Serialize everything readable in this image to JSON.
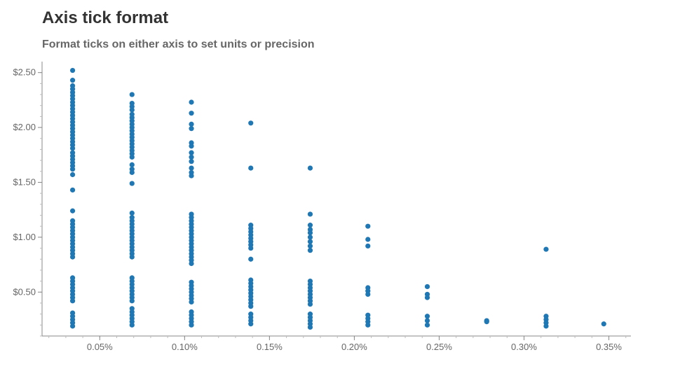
{
  "chart_data": {
    "type": "scatter",
    "title": "Axis tick format",
    "subtitle": "Format ticks on either axis to set units or precision",
    "xlabel": "",
    "ylabel": "",
    "xlim": [
      0.00016,
      0.00363
    ],
    "ylim": [
      0.1,
      2.6
    ],
    "grid": false,
    "x_ticks": [
      {
        "value": 0.0005,
        "label": "0.05%"
      },
      {
        "value": 0.001,
        "label": "0.10%"
      },
      {
        "value": 0.0015,
        "label": "0.15%"
      },
      {
        "value": 0.002,
        "label": "0.20%"
      },
      {
        "value": 0.0025,
        "label": "0.25%"
      },
      {
        "value": 0.003,
        "label": "0.30%"
      },
      {
        "value": 0.0035,
        "label": "0.35%"
      }
    ],
    "y_ticks": [
      {
        "value": 0.5,
        "label": "$0.50"
      },
      {
        "value": 1.0,
        "label": "$1.00"
      },
      {
        "value": 1.5,
        "label": "$1.50"
      },
      {
        "value": 2.0,
        "label": "$2.00"
      },
      {
        "value": 2.5,
        "label": "$2.50"
      }
    ],
    "colors": {
      "points": "#1f77b4",
      "axis": "#888888"
    },
    "series": [
      {
        "points": [
          [
            0.00034,
            2.52
          ],
          [
            0.00034,
            2.43
          ],
          [
            0.00034,
            2.38
          ],
          [
            0.00034,
            2.35
          ],
          [
            0.00034,
            2.32
          ],
          [
            0.00034,
            2.29
          ],
          [
            0.00034,
            2.26
          ],
          [
            0.00034,
            2.23
          ],
          [
            0.00034,
            2.2
          ],
          [
            0.00034,
            2.17
          ],
          [
            0.00034,
            2.14
          ],
          [
            0.00034,
            2.11
          ],
          [
            0.00034,
            2.08
          ],
          [
            0.00034,
            2.05
          ],
          [
            0.00034,
            2.02
          ],
          [
            0.00034,
            1.99
          ],
          [
            0.00034,
            1.96
          ],
          [
            0.00034,
            1.93
          ],
          [
            0.00034,
            1.9
          ],
          [
            0.00034,
            1.87
          ],
          [
            0.00034,
            1.84
          ],
          [
            0.00034,
            1.81
          ],
          [
            0.00034,
            1.77
          ],
          [
            0.00034,
            1.74
          ],
          [
            0.00034,
            1.71
          ],
          [
            0.00034,
            1.68
          ],
          [
            0.00034,
            1.65
          ],
          [
            0.00034,
            1.62
          ],
          [
            0.00034,
            1.57
          ],
          [
            0.00034,
            1.43
          ],
          [
            0.00034,
            1.24
          ],
          [
            0.00034,
            1.15
          ],
          [
            0.00034,
            1.12
          ],
          [
            0.00034,
            1.09
          ],
          [
            0.00034,
            1.06
          ],
          [
            0.00034,
            1.03
          ],
          [
            0.00034,
            1.0
          ],
          [
            0.00034,
            0.97
          ],
          [
            0.00034,
            0.94
          ],
          [
            0.00034,
            0.91
          ],
          [
            0.00034,
            0.88
          ],
          [
            0.00034,
            0.85
          ],
          [
            0.00034,
            0.82
          ],
          [
            0.00034,
            0.63
          ],
          [
            0.00034,
            0.6
          ],
          [
            0.00034,
            0.57
          ],
          [
            0.00034,
            0.54
          ],
          [
            0.00034,
            0.51
          ],
          [
            0.00034,
            0.48
          ],
          [
            0.00034,
            0.45
          ],
          [
            0.00034,
            0.42
          ],
          [
            0.00034,
            0.31
          ],
          [
            0.00034,
            0.28
          ],
          [
            0.00034,
            0.25
          ],
          [
            0.00034,
            0.22
          ],
          [
            0.00034,
            0.19
          ],
          [
            0.00069,
            2.3
          ],
          [
            0.00069,
            2.22
          ],
          [
            0.00069,
            2.19
          ],
          [
            0.00069,
            2.16
          ],
          [
            0.00069,
            2.12
          ],
          [
            0.00069,
            2.09
          ],
          [
            0.00069,
            2.06
          ],
          [
            0.00069,
            2.03
          ],
          [
            0.00069,
            2.0
          ],
          [
            0.00069,
            1.97
          ],
          [
            0.00069,
            1.94
          ],
          [
            0.00069,
            1.91
          ],
          [
            0.00069,
            1.88
          ],
          [
            0.00069,
            1.85
          ],
          [
            0.00069,
            1.82
          ],
          [
            0.00069,
            1.79
          ],
          [
            0.00069,
            1.76
          ],
          [
            0.00069,
            1.73
          ],
          [
            0.00069,
            1.66
          ],
          [
            0.00069,
            1.62
          ],
          [
            0.00069,
            1.59
          ],
          [
            0.00069,
            1.49
          ],
          [
            0.00069,
            1.22
          ],
          [
            0.00069,
            1.18
          ],
          [
            0.00069,
            1.15
          ],
          [
            0.00069,
            1.12
          ],
          [
            0.00069,
            1.09
          ],
          [
            0.00069,
            1.06
          ],
          [
            0.00069,
            1.03
          ],
          [
            0.00069,
            1.0
          ],
          [
            0.00069,
            0.97
          ],
          [
            0.00069,
            0.94
          ],
          [
            0.00069,
            0.91
          ],
          [
            0.00069,
            0.88
          ],
          [
            0.00069,
            0.85
          ],
          [
            0.00069,
            0.82
          ],
          [
            0.00069,
            0.63
          ],
          [
            0.00069,
            0.6
          ],
          [
            0.00069,
            0.57
          ],
          [
            0.00069,
            0.54
          ],
          [
            0.00069,
            0.51
          ],
          [
            0.00069,
            0.48
          ],
          [
            0.00069,
            0.45
          ],
          [
            0.00069,
            0.42
          ],
          [
            0.00069,
            0.35
          ],
          [
            0.00069,
            0.32
          ],
          [
            0.00069,
            0.29
          ],
          [
            0.00069,
            0.26
          ],
          [
            0.00069,
            0.23
          ],
          [
            0.00069,
            0.2
          ],
          [
            0.00104,
            2.23
          ],
          [
            0.00104,
            2.13
          ],
          [
            0.00104,
            2.03
          ],
          [
            0.00104,
            1.99
          ],
          [
            0.00104,
            1.86
          ],
          [
            0.00104,
            1.83
          ],
          [
            0.00104,
            1.77
          ],
          [
            0.00104,
            1.73
          ],
          [
            0.00104,
            1.69
          ],
          [
            0.00104,
            1.63
          ],
          [
            0.00104,
            1.59
          ],
          [
            0.00104,
            1.56
          ],
          [
            0.00104,
            1.21
          ],
          [
            0.00104,
            1.18
          ],
          [
            0.00104,
            1.15
          ],
          [
            0.00104,
            1.12
          ],
          [
            0.00104,
            1.09
          ],
          [
            0.00104,
            1.06
          ],
          [
            0.00104,
            1.03
          ],
          [
            0.00104,
            1.0
          ],
          [
            0.00104,
            0.97
          ],
          [
            0.00104,
            0.94
          ],
          [
            0.00104,
            0.91
          ],
          [
            0.00104,
            0.88
          ],
          [
            0.00104,
            0.85
          ],
          [
            0.00104,
            0.82
          ],
          [
            0.00104,
            0.79
          ],
          [
            0.00104,
            0.76
          ],
          [
            0.00104,
            0.59
          ],
          [
            0.00104,
            0.56
          ],
          [
            0.00104,
            0.53
          ],
          [
            0.00104,
            0.5
          ],
          [
            0.00104,
            0.47
          ],
          [
            0.00104,
            0.44
          ],
          [
            0.00104,
            0.41
          ],
          [
            0.00104,
            0.32
          ],
          [
            0.00104,
            0.29
          ],
          [
            0.00104,
            0.26
          ],
          [
            0.00104,
            0.23
          ],
          [
            0.00104,
            0.2
          ],
          [
            0.00139,
            2.04
          ],
          [
            0.00139,
            1.63
          ],
          [
            0.00139,
            1.11
          ],
          [
            0.00139,
            1.08
          ],
          [
            0.00139,
            1.05
          ],
          [
            0.00139,
            1.02
          ],
          [
            0.00139,
            0.99
          ],
          [
            0.00139,
            0.96
          ],
          [
            0.00139,
            0.93
          ],
          [
            0.00139,
            0.9
          ],
          [
            0.00139,
            0.8
          ],
          [
            0.00139,
            0.61
          ],
          [
            0.00139,
            0.58
          ],
          [
            0.00139,
            0.55
          ],
          [
            0.00139,
            0.52
          ],
          [
            0.00139,
            0.49
          ],
          [
            0.00139,
            0.46
          ],
          [
            0.00139,
            0.43
          ],
          [
            0.00139,
            0.4
          ],
          [
            0.00139,
            0.37
          ],
          [
            0.00139,
            0.3
          ],
          [
            0.00139,
            0.27
          ],
          [
            0.00139,
            0.24
          ],
          [
            0.00139,
            0.21
          ],
          [
            0.00174,
            1.63
          ],
          [
            0.00174,
            1.21
          ],
          [
            0.00174,
            1.11
          ],
          [
            0.00174,
            1.07
          ],
          [
            0.00174,
            1.04
          ],
          [
            0.00174,
            1.0
          ],
          [
            0.00174,
            0.96
          ],
          [
            0.00174,
            0.92
          ],
          [
            0.00174,
            0.88
          ],
          [
            0.00174,
            0.6
          ],
          [
            0.00174,
            0.57
          ],
          [
            0.00174,
            0.54
          ],
          [
            0.00174,
            0.51
          ],
          [
            0.00174,
            0.48
          ],
          [
            0.00174,
            0.45
          ],
          [
            0.00174,
            0.42
          ],
          [
            0.00174,
            0.39
          ],
          [
            0.00174,
            0.3
          ],
          [
            0.00174,
            0.27
          ],
          [
            0.00174,
            0.24
          ],
          [
            0.00174,
            0.21
          ],
          [
            0.00174,
            0.18
          ],
          [
            0.00208,
            1.1
          ],
          [
            0.00208,
            0.98
          ],
          [
            0.00208,
            0.92
          ],
          [
            0.00208,
            0.54
          ],
          [
            0.00208,
            0.51
          ],
          [
            0.00208,
            0.48
          ],
          [
            0.00208,
            0.29
          ],
          [
            0.00208,
            0.26
          ],
          [
            0.00208,
            0.23
          ],
          [
            0.00208,
            0.2
          ],
          [
            0.00243,
            0.55
          ],
          [
            0.00243,
            0.48
          ],
          [
            0.00243,
            0.45
          ],
          [
            0.00243,
            0.28
          ],
          [
            0.00243,
            0.24
          ],
          [
            0.00243,
            0.2
          ],
          [
            0.00278,
            0.24
          ],
          [
            0.00278,
            0.23
          ],
          [
            0.00313,
            0.89
          ],
          [
            0.00313,
            0.28
          ],
          [
            0.00313,
            0.25
          ],
          [
            0.00313,
            0.22
          ],
          [
            0.00313,
            0.19
          ],
          [
            0.00347,
            0.21
          ]
        ]
      }
    ]
  }
}
